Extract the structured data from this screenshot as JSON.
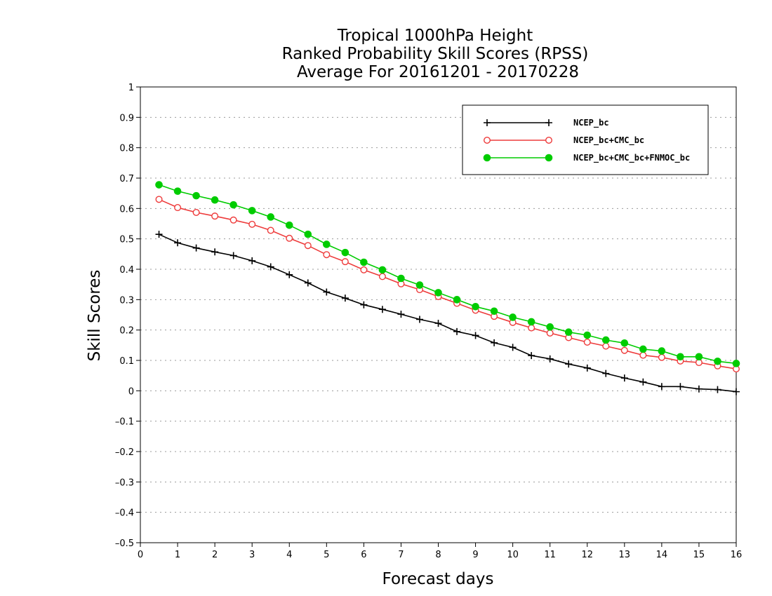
{
  "chart_data": {
    "type": "line",
    "title_lines": [
      "Tropical 1000hPa Height",
      "Ranked Probability Skill Scores (RPSS)",
      "Average For 20161201 - 20170228"
    ],
    "xlabel": "Forecast days",
    "ylabel": "Skill Scores",
    "xlim": [
      0,
      16
    ],
    "ylim": [
      -0.5,
      1
    ],
    "xticks": [
      0,
      1,
      2,
      3,
      4,
      5,
      6,
      7,
      8,
      9,
      10,
      11,
      12,
      13,
      14,
      15,
      16
    ],
    "yticks": [
      -0.5,
      -0.4,
      -0.3,
      -0.2,
      -0.1,
      0,
      0.1,
      0.2,
      0.3,
      0.4,
      0.5,
      0.6,
      0.7,
      0.8,
      0.9,
      1
    ],
    "ytick_labels": [
      "–0.5",
      "–0.4",
      "–0.3",
      "–0.2",
      "–0.1",
      "0",
      "0.1",
      "0.2",
      "0.3",
      "0.4",
      "0.5",
      "0.6",
      "0.7",
      "0.8",
      "0.9",
      "1"
    ],
    "grid": true,
    "legend_position": "top-right",
    "x": [
      0.5,
      1,
      1.5,
      2,
      2.5,
      3,
      3.5,
      4,
      4.5,
      5,
      5.5,
      6,
      6.5,
      7,
      7.5,
      8,
      8.5,
      9,
      9.5,
      10,
      10.5,
      11,
      11.5,
      12,
      12.5,
      13,
      13.5,
      14,
      14.5,
      15,
      15.5,
      16
    ],
    "series": [
      {
        "name": "NCEP_bc",
        "color": "#000000",
        "marker": "plus",
        "values": [
          0.515,
          0.487,
          0.47,
          0.457,
          0.445,
          0.428,
          0.408,
          0.382,
          0.355,
          0.325,
          0.305,
          0.283,
          0.268,
          0.252,
          0.235,
          0.222,
          0.195,
          0.182,
          0.158,
          0.143,
          0.116,
          0.105,
          0.088,
          0.075,
          0.057,
          0.042,
          0.029,
          0.014,
          0.014,
          0.006,
          0.004,
          -0.003
        ]
      },
      {
        "name": "NCEP_bc+CMC_bc",
        "color": "#ee3b3b",
        "marker": "open-circle",
        "values": [
          0.63,
          0.603,
          0.587,
          0.575,
          0.562,
          0.548,
          0.528,
          0.502,
          0.478,
          0.448,
          0.425,
          0.398,
          0.376,
          0.352,
          0.333,
          0.31,
          0.288,
          0.265,
          0.245,
          0.225,
          0.207,
          0.19,
          0.175,
          0.16,
          0.147,
          0.133,
          0.117,
          0.11,
          0.098,
          0.093,
          0.082,
          0.072
        ]
      },
      {
        "name": "NCEP_bc+CMC_bc+FNMOC_bc",
        "color": "#00cc00",
        "marker": "filled-circle",
        "values": [
          0.678,
          0.657,
          0.642,
          0.628,
          0.612,
          0.593,
          0.572,
          0.545,
          0.515,
          0.482,
          0.455,
          0.423,
          0.398,
          0.37,
          0.348,
          0.323,
          0.3,
          0.277,
          0.262,
          0.242,
          0.227,
          0.21,
          0.193,
          0.183,
          0.167,
          0.157,
          0.137,
          0.131,
          0.112,
          0.112,
          0.097,
          0.09
        ]
      }
    ]
  }
}
